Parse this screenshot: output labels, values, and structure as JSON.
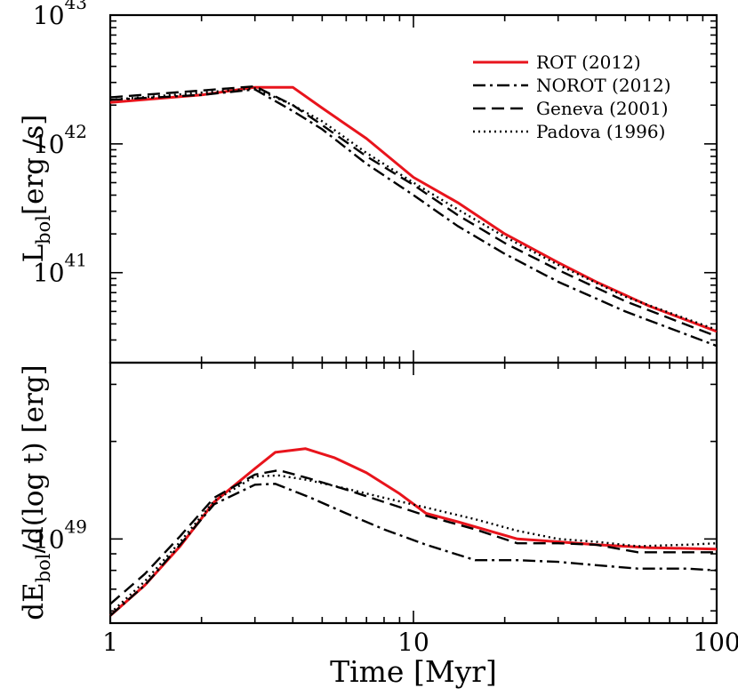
{
  "chart_data": [
    {
      "type": "line",
      "panel": "top",
      "xscale": "log",
      "yscale": "log",
      "xlim": [
        1,
        100
      ],
      "ylim": [
        2e+40,
        1e+43
      ],
      "ylabel_main": "L",
      "ylabel_sub": "bol",
      "ylabel_unit": "[erg /s]",
      "y_ticks": [
        {
          "value": 1e+41,
          "base": "10",
          "exp": "41"
        },
        {
          "value": 1e+42,
          "base": "10",
          "exp": "42"
        },
        {
          "value": 1e+43,
          "base": "10",
          "exp": "43"
        }
      ],
      "legend": {
        "position": "top-right",
        "entries": [
          {
            "label": "ROT (2012)",
            "color": "#e8141c",
            "dash": "solid"
          },
          {
            "label": "NOROT (2012)",
            "color": "#000000",
            "dash": "dashdot"
          },
          {
            "label": "Geneva (2001)",
            "color": "#000000",
            "dash": "dashed"
          },
          {
            "label": "Padova (1996)",
            "color": "#000000",
            "dash": "dotted"
          }
        ]
      },
      "series": [
        {
          "name": "ROT (2012)",
          "color": "#e8141c",
          "dash": "solid",
          "x": [
            1,
            2,
            3,
            3.5,
            4,
            5,
            7,
            10,
            14,
            20,
            30,
            40,
            60,
            100
          ],
          "y": [
            2.1e+42,
            2.4e+42,
            2.75e+42,
            2.75e+42,
            2.75e+42,
            1.9e+42,
            1.1e+42,
            5.5e+41,
            3.5e+41,
            2e+41,
            1.2e+41,
            8.5e+40,
            5.5e+40,
            3.5e+40
          ]
        },
        {
          "name": "NOROT (2012)",
          "color": "#000000",
          "dash": "dashdot",
          "x": [
            1,
            2,
            3,
            4,
            5,
            7,
            10,
            14,
            20,
            30,
            50,
            100
          ],
          "y": [
            2.2e+42,
            2.4e+42,
            2.65e+42,
            1.8e+42,
            1.3e+42,
            7e+41,
            4e+41,
            2.3e+41,
            1.4e+41,
            8.5e+40,
            5e+40,
            2.7e+40
          ]
        },
        {
          "name": "Geneva (2001)",
          "color": "#000000",
          "dash": "dashed",
          "x": [
            1,
            2,
            3,
            4,
            5,
            7,
            10,
            14,
            20,
            30,
            50,
            100
          ],
          "y": [
            2.3e+42,
            2.6e+42,
            2.8e+42,
            2e+42,
            1.4e+42,
            8e+41,
            4.8e+41,
            2.8e+41,
            1.7e+41,
            1.05e+41,
            6e+40,
            3.2e+40
          ]
        },
        {
          "name": "Padova (1996)",
          "color": "#000000",
          "dash": "dotted",
          "x": [
            1,
            2,
            3,
            4,
            5,
            7,
            10,
            14,
            20,
            30,
            50,
            100
          ],
          "y": [
            2.2e+42,
            2.5e+42,
            2.7e+42,
            2e+42,
            1.5e+42,
            8.5e+41,
            5e+41,
            3.1e+41,
            1.9e+41,
            1.15e+41,
            6.5e+40,
            3.6e+40
          ]
        }
      ]
    },
    {
      "type": "line",
      "panel": "bottom",
      "xscale": "log",
      "yscale": "log",
      "xlim": [
        1,
        100
      ],
      "ylim": [
        5.5e+48,
        3.5e+49
      ],
      "xlabel": "Time [Myr]",
      "x_ticks": [
        {
          "value": 1,
          "label": "1"
        },
        {
          "value": 10,
          "label": "10"
        },
        {
          "value": 100,
          "label": "100"
        }
      ],
      "ylabel_main": "dE",
      "ylabel_sub": "bol",
      "ylabel_unit": "/d(log t) [erg]",
      "y_ticks": [
        {
          "value": 1e+49,
          "base": "10",
          "exp": "49"
        }
      ],
      "series": [
        {
          "name": "ROT (2012)",
          "color": "#e8141c",
          "dash": "solid",
          "x": [
            1,
            1.3,
            1.7,
            2.2,
            3,
            3.5,
            4.4,
            5.5,
            7,
            9,
            11,
            14,
            22,
            30,
            40,
            60,
            100
          ],
          "y": [
            5.8e+48,
            7.2e+48,
            9.5e+48,
            1.3e+49,
            1.65e+49,
            1.85e+49,
            1.9e+49,
            1.78e+49,
            1.6e+49,
            1.38e+49,
            1.2e+49,
            1.13e+49,
            1e+49,
            9.8e+48,
            9.6e+48,
            9.4e+48,
            9.3e+48
          ]
        },
        {
          "name": "NOROT (2012)",
          "color": "#000000",
          "dash": "dashdot",
          "x": [
            1,
            1.3,
            1.7,
            2.2,
            3,
            3.5,
            4.5,
            6,
            8,
            11,
            16,
            22,
            30,
            40,
            55,
            80,
            100
          ],
          "y": [
            5.8e+48,
            7.2e+48,
            9.6e+48,
            1.28e+49,
            1.47e+49,
            1.48e+49,
            1.35e+49,
            1.2e+49,
            1.07e+49,
            9.6e+48,
            8.6e+48,
            8.6e+48,
            8.5e+48,
            8.3e+48,
            8.1e+48,
            8.1e+48,
            8e+48
          ]
        },
        {
          "name": "Geneva (2001)",
          "color": "#000000",
          "dash": "dashed",
          "x": [
            1,
            1.3,
            1.7,
            2.2,
            3,
            3.6,
            4.5,
            6,
            8,
            11,
            16,
            22,
            30,
            40,
            55,
            80,
            100
          ],
          "y": [
            6.3e+48,
            7.8e+48,
            1.02e+49,
            1.34e+49,
            1.58e+49,
            1.63e+49,
            1.54e+49,
            1.42e+49,
            1.3e+49,
            1.18e+49,
            1.07e+49,
            9.7e+48,
            9.7e+48,
            9.6e+48,
            9.1e+48,
            9.1e+48,
            9.1e+48
          ]
        },
        {
          "name": "Padova (1996)",
          "color": "#000000",
          "dash": "dotted",
          "x": [
            1,
            1.3,
            1.7,
            2.2,
            3,
            3.6,
            4.5,
            6,
            8,
            11,
            16,
            22,
            30,
            40,
            55,
            80,
            100
          ],
          "y": [
            5.9e+48,
            7.4e+48,
            9.8e+48,
            1.31e+49,
            1.56e+49,
            1.57e+49,
            1.52e+49,
            1.43e+49,
            1.34e+49,
            1.25e+49,
            1.15e+49,
            1.06e+49,
            1e+49,
            9.8e+48,
            9.5e+48,
            9.6e+48,
            9.7e+48
          ]
        }
      ]
    }
  ]
}
